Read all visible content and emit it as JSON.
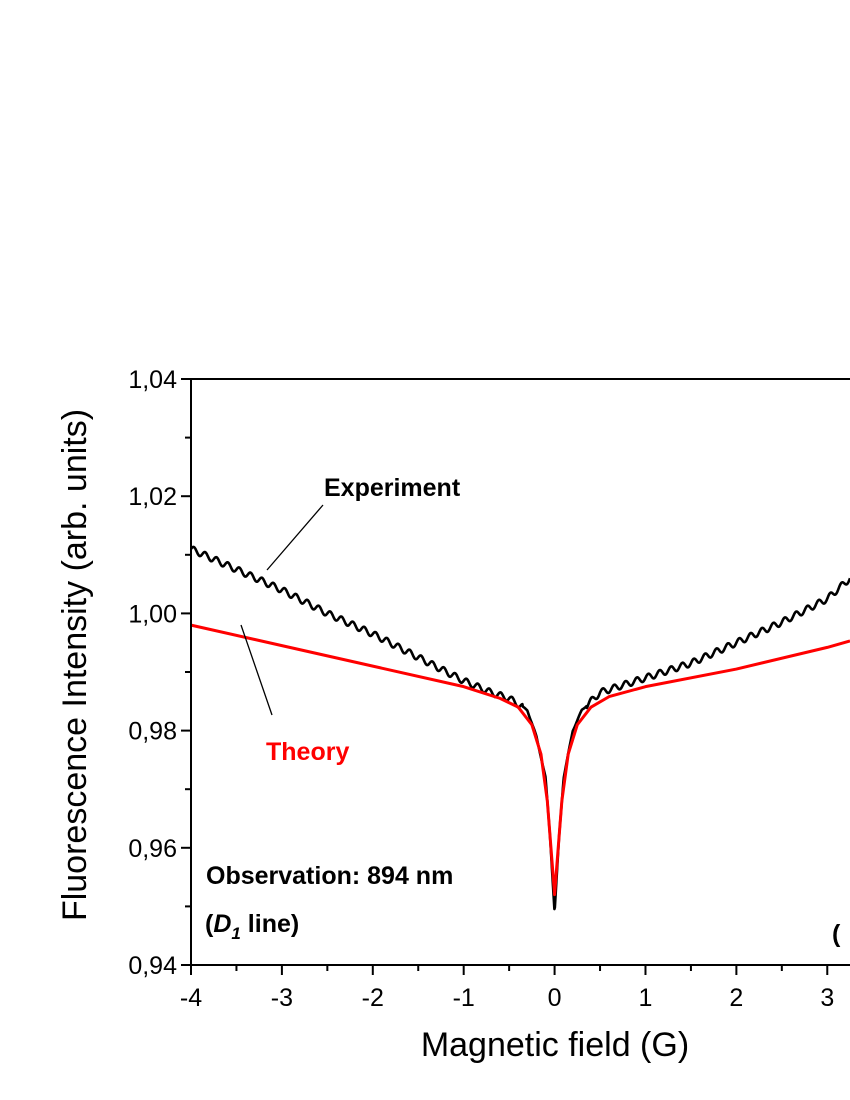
{
  "chart_data": {
    "type": "line",
    "xlabel": "Magnetic field (G)",
    "ylabel": "Fluorescence Intensity (arb. units)",
    "xlim": [
      -4,
      3.25
    ],
    "ylim": [
      0.94,
      1.04
    ],
    "x_ticks": [
      {
        "value": -4,
        "label": "-4"
      },
      {
        "value": -3,
        "label": "-3"
      },
      {
        "value": -2,
        "label": "-2"
      },
      {
        "value": -1,
        "label": "-1"
      },
      {
        "value": 0,
        "label": "0"
      },
      {
        "value": 1,
        "label": "1"
      },
      {
        "value": 2,
        "label": "2"
      },
      {
        "value": 3,
        "label": "3"
      }
    ],
    "y_ticks": [
      {
        "value": 0.94,
        "label": "0,94"
      },
      {
        "value": 0.96,
        "label": "0,96"
      },
      {
        "value": 0.98,
        "label": "0,98"
      },
      {
        "value": 1.0,
        "label": "1,00"
      },
      {
        "value": 1.02,
        "label": "1,02"
      },
      {
        "value": 1.04,
        "label": "1,04"
      }
    ],
    "series": [
      {
        "name": "Experiment",
        "color": "#000000",
        "x": [
          -4.0,
          -3.5,
          -3.0,
          -2.5,
          -2.0,
          -1.5,
          -1.0,
          -0.7,
          -0.5,
          -0.3,
          -0.2,
          -0.1,
          -0.05,
          0.0,
          0.05,
          0.1,
          0.2,
          0.3,
          0.5,
          0.7,
          1.0,
          1.5,
          2.0,
          2.5,
          3.0,
          3.25
        ],
        "y": [
          1.011,
          1.0075,
          1.004,
          1.0,
          0.9965,
          0.9925,
          0.9885,
          0.9865,
          0.9855,
          0.9835,
          0.979,
          0.972,
          0.962,
          0.949,
          0.962,
          0.972,
          0.98,
          0.9835,
          0.9865,
          0.9875,
          0.989,
          0.9915,
          0.995,
          0.9985,
          1.0025,
          1.006
        ]
      },
      {
        "name": "Theory",
        "color": "#ff0000",
        "x": [
          -4.0,
          -3.0,
          -2.0,
          -1.0,
          -0.6,
          -0.4,
          -0.25,
          -0.15,
          -0.08,
          -0.03,
          0.0,
          0.03,
          0.08,
          0.15,
          0.25,
          0.4,
          0.6,
          1.0,
          2.0,
          3.0,
          3.25
        ],
        "y": [
          0.998,
          0.9945,
          0.991,
          0.9875,
          0.9855,
          0.984,
          0.981,
          0.976,
          0.968,
          0.958,
          0.952,
          0.958,
          0.968,
          0.976,
          0.981,
          0.984,
          0.9858,
          0.9875,
          0.9905,
          0.9942,
          0.9953
        ]
      }
    ]
  },
  "annotations": {
    "experiment": "Experiment",
    "theory": "Theory",
    "observation": "Observation: 894 nm",
    "line_open": "(",
    "line_d": "D",
    "line_sub": "1",
    "line_rest": " line)",
    "panel_label": "("
  }
}
